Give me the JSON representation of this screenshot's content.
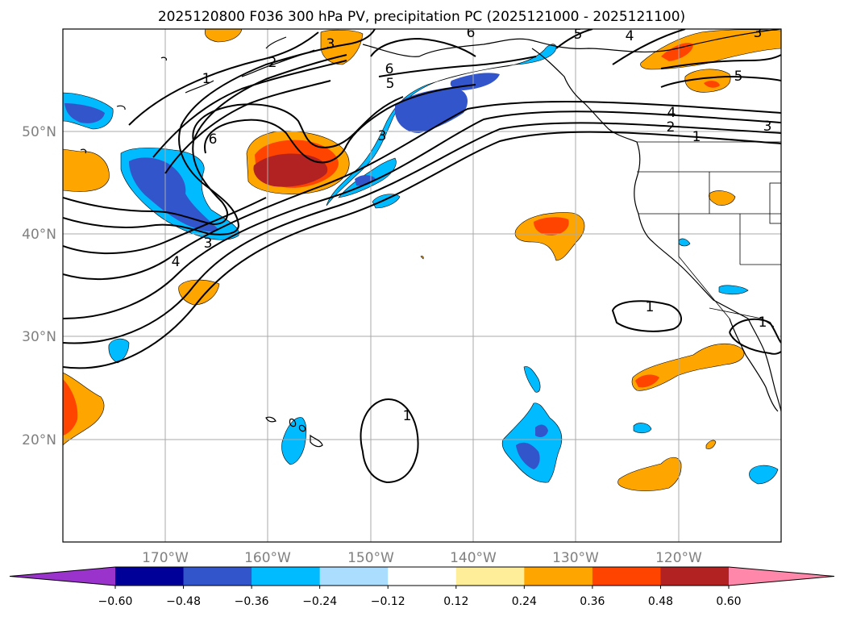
{
  "title": "2025120800 F036 300 hPa PV, precipitation PC (2025121000 - 2025121100)",
  "lat_labels": [
    "50°N",
    "40°N",
    "30°N",
    "20°N"
  ],
  "lon_labels": [
    "170°W",
    "160°W",
    "150°W",
    "140°W",
    "130°W",
    "120°W"
  ],
  "colorbar": {
    "ticks": [
      "−0.60",
      "−0.48",
      "−0.36",
      "−0.24",
      "−0.12",
      "0.12",
      "0.24",
      "0.36",
      "0.48",
      "0.60"
    ],
    "colors": [
      "#9933cc",
      "#000099",
      "#3355cc",
      "#00bbff",
      "#aaddff",
      "#ffffff",
      "#ffee99",
      "#ffa500",
      "#ff4400",
      "#b22222",
      "#ff88aa"
    ]
  },
  "contour_labels": [
    "1",
    "2",
    "3",
    "4",
    "5",
    "6",
    "6",
    "5",
    "4",
    "3",
    "2",
    "1",
    "3",
    "4",
    "5",
    "1",
    "1",
    "1",
    "6",
    "3",
    "3"
  ]
}
